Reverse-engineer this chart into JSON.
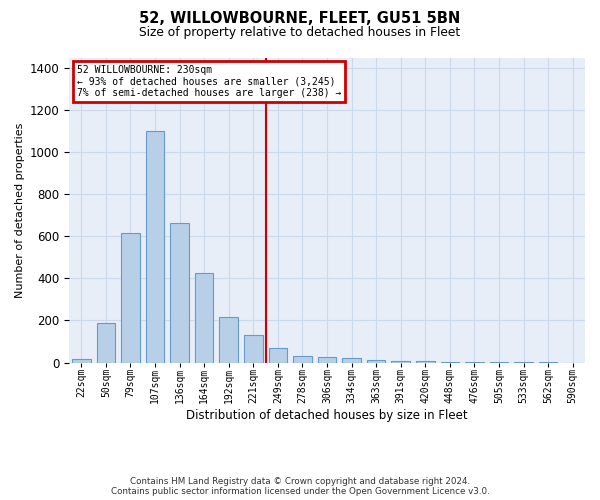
{
  "title": "52, WILLOWBOURNE, FLEET, GU51 5BN",
  "subtitle": "Size of property relative to detached houses in Fleet",
  "xlabel": "Distribution of detached houses by size in Fleet",
  "ylabel": "Number of detached properties",
  "footer_line1": "Contains HM Land Registry data © Crown copyright and database right 2024.",
  "footer_line2": "Contains public sector information licensed under the Open Government Licence v3.0.",
  "annotation_line1": "52 WILLOWBOURNE: 230sqm",
  "annotation_line2": "← 93% of detached houses are smaller (3,245)",
  "annotation_line3": "7% of semi-detached houses are larger (238) →",
  "bar_color": "#b8cfe8",
  "bar_edge_color": "#6699cc",
  "vline_color": "#cc0000",
  "annotation_box_edgecolor": "#cc0000",
  "grid_color": "#ccd8ec",
  "background_color": "#e8eef8",
  "categories": [
    "22sqm",
    "50sqm",
    "79sqm",
    "107sqm",
    "136sqm",
    "164sqm",
    "192sqm",
    "221sqm",
    "249sqm",
    "278sqm",
    "306sqm",
    "334sqm",
    "363sqm",
    "391sqm",
    "420sqm",
    "448sqm",
    "476sqm",
    "505sqm",
    "533sqm",
    "562sqm",
    "590sqm"
  ],
  "values": [
    15,
    190,
    615,
    1100,
    665,
    425,
    215,
    130,
    70,
    30,
    25,
    20,
    10,
    8,
    5,
    3,
    2,
    1,
    1,
    1,
    0
  ],
  "vline_position": 7.5,
  "ylim": [
    0,
    1450
  ],
  "yticks": [
    0,
    200,
    400,
    600,
    800,
    1000,
    1200,
    1400
  ]
}
